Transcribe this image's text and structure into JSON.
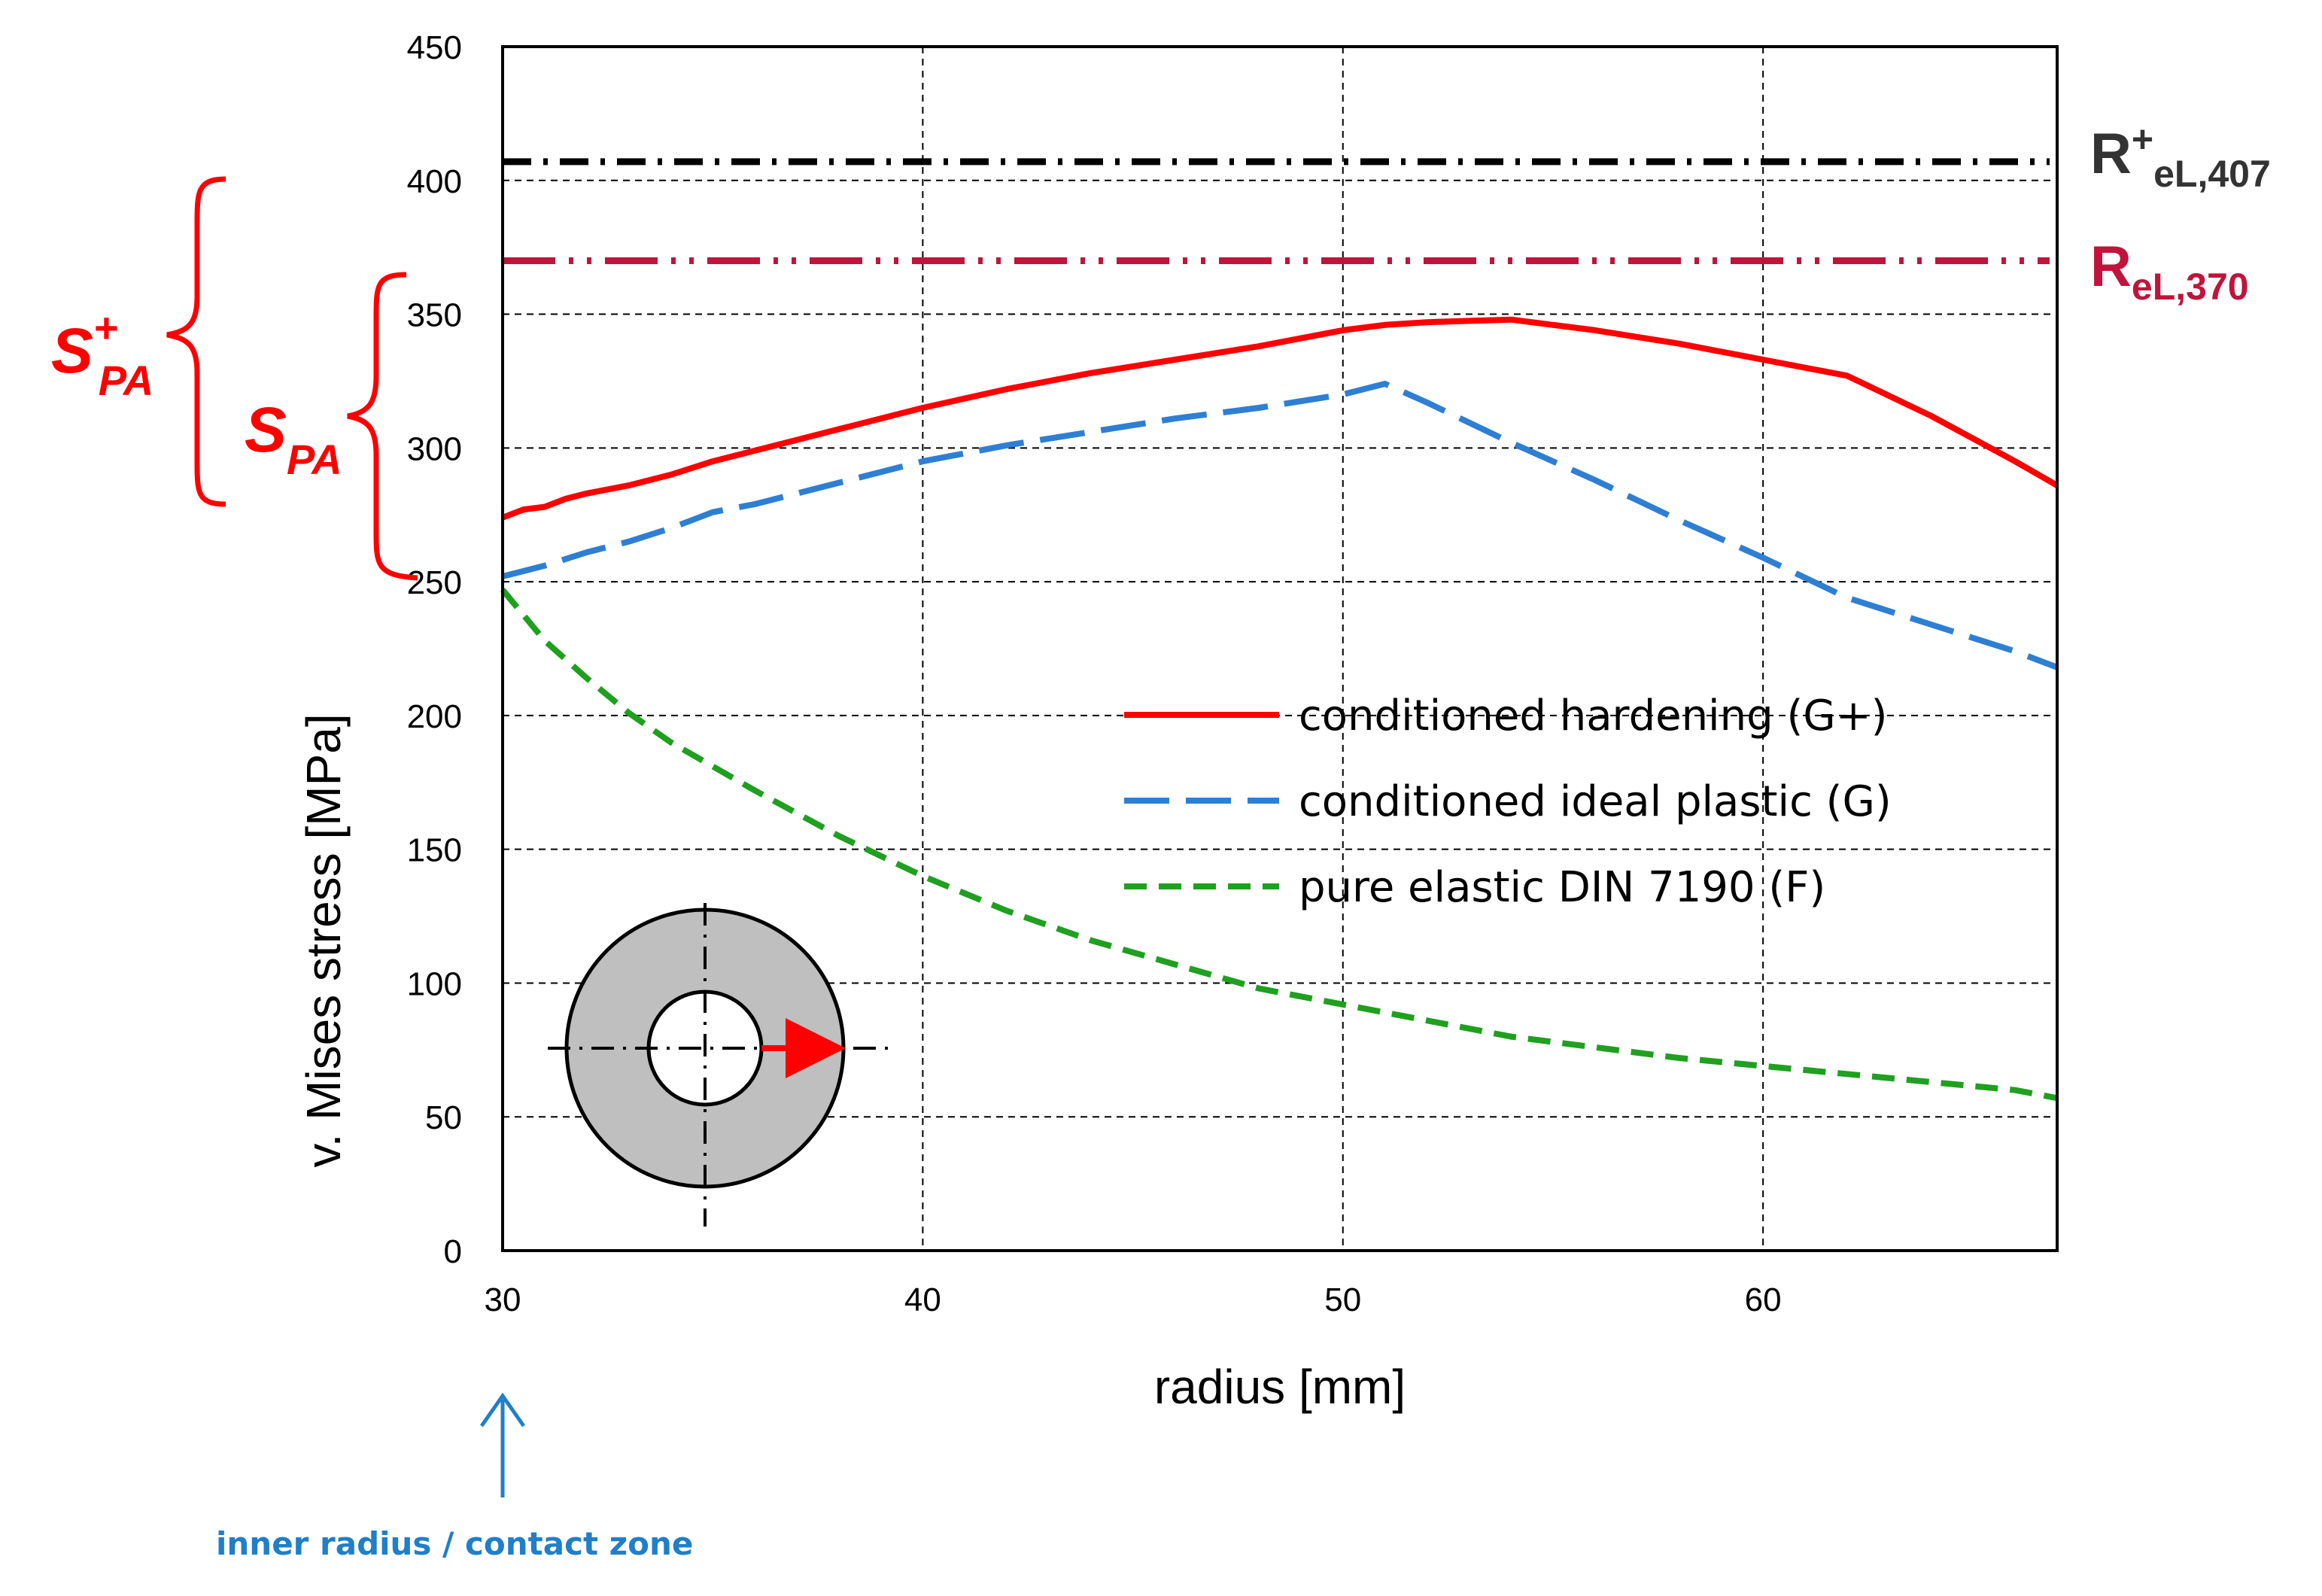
{
  "chart_data": {
    "type": "line",
    "xlabel": "radius [mm]",
    "ylabel": "v. Mises stress [MPa]",
    "xlim": [
      30,
      67
    ],
    "ylim": [
      0,
      450
    ],
    "x_ticks": [
      30,
      40,
      50,
      60
    ],
    "y_ticks": [
      0,
      50,
      100,
      150,
      200,
      250,
      300,
      350,
      400,
      450
    ],
    "grid": true,
    "legend_position": "right-center",
    "series": [
      {
        "name": "conditioned hardening (G+)",
        "color": "#ff0000",
        "style": "solid",
        "x": [
          30,
          30.5,
          31,
          31.5,
          32,
          33,
          34,
          35,
          36,
          38,
          40,
          42,
          44,
          46,
          48,
          50,
          51,
          52,
          54,
          56,
          58,
          60,
          62,
          64,
          66,
          67
        ],
        "y": [
          274,
          277,
          278,
          281,
          283,
          286,
          290,
          295,
          299,
          307,
          315,
          322,
          328,
          333,
          338,
          344,
          346,
          347,
          348,
          344,
          339,
          333,
          327,
          312,
          295,
          286
        ]
      },
      {
        "name": "conditioned ideal plastic (G)",
        "color": "#2e7fd3",
        "style": "dashed",
        "x": [
          30,
          31,
          32,
          33,
          34,
          35,
          36,
          38,
          40,
          42,
          44,
          46,
          48,
          50,
          51,
          52,
          54,
          56,
          58,
          60,
          62,
          64,
          66,
          67
        ],
        "y": [
          252,
          256,
          261,
          265,
          270,
          276,
          279,
          287,
          295,
          301,
          306,
          311,
          315,
          320,
          324,
          317,
          302,
          288,
          273,
          259,
          244,
          234,
          224,
          218
        ]
      },
      {
        "name": "pure elastic DIN 7190 (F)",
        "color": "#1fa01f",
        "style": "dashed",
        "x": [
          30,
          31,
          32,
          33,
          34,
          35,
          36,
          38,
          40,
          42,
          44,
          46,
          48,
          50,
          52,
          54,
          56,
          58,
          60,
          62,
          64,
          66,
          67
        ],
        "y": [
          247,
          228,
          214,
          201,
          190,
          181,
          172,
          155,
          140,
          127,
          116,
          107,
          98,
          92,
          86,
          80,
          76,
          72,
          69,
          66,
          63,
          60,
          57
        ]
      }
    ],
    "reference_lines": [
      {
        "name": "R+eL,407",
        "main": "R",
        "sup": "+",
        "sub": "eL,407",
        "value": 407,
        "color": "#000000",
        "style": "dash-dot"
      },
      {
        "name": "ReL,370",
        "main": "R",
        "sup": "",
        "sub": "eL,370",
        "value": 370,
        "color": "#c0143c",
        "style": "dash-dot-dot"
      }
    ],
    "brackets": [
      {
        "label_main": "S",
        "label_sup": "+",
        "label_sub": "PA",
        "from": 274,
        "to": 400
      },
      {
        "label_main": "S",
        "label_sup": "",
        "label_sub": "PA",
        "from": 252,
        "to": 364
      }
    ],
    "annotation": {
      "text": "inner radius / contact zone",
      "x": 30
    }
  }
}
